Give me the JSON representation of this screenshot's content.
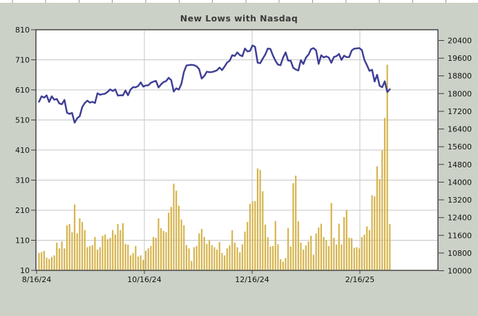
{
  "window": {
    "background_color": "#ccd1c7",
    "plot_background_color": "#ffffff",
    "frame_color": "#3a3a3a",
    "gridline_color": "#c5c5c5",
    "text_color": "#111111",
    "title_color": "#3b3b3b"
  },
  "chart_data": {
    "type": "bar",
    "title": "New Lows with Nasdaq",
    "legend_position": "none",
    "grid": "on",
    "left_axis": {
      "label": "",
      "min": 10,
      "max": 810,
      "ticks": [
        810,
        710,
        610,
        510,
        410,
        310,
        210,
        110,
        10
      ]
    },
    "right_axis": {
      "label": "",
      "min": 10000,
      "max": 20400,
      "ticks": [
        20400,
        19600,
        18800,
        18000,
        17200,
        16400,
        15600,
        14800,
        14000,
        13200,
        12400,
        11600,
        10800,
        10000
      ]
    },
    "x_tick_labels": [
      "8/16/24",
      "10/16/24",
      "12/16/24",
      "2/16/25"
    ],
    "dates": [
      "8/16/24",
      "8/19/24",
      "8/20/24",
      "8/21/24",
      "8/22/24",
      "8/23/24",
      "8/26/24",
      "8/27/24",
      "8/28/24",
      "8/29/24",
      "8/30/24",
      "9/3/24",
      "9/4/24",
      "9/5/24",
      "9/6/24",
      "9/9/24",
      "9/10/24",
      "9/11/24",
      "9/12/24",
      "9/13/24",
      "9/16/24",
      "9/17/24",
      "9/18/24",
      "9/19/24",
      "9/20/24",
      "9/23/24",
      "9/24/24",
      "9/25/24",
      "9/26/24",
      "9/27/24",
      "9/30/24",
      "10/1/24",
      "10/2/24",
      "10/3/24",
      "10/4/24",
      "10/7/24",
      "10/8/24",
      "10/9/24",
      "10/10/24",
      "10/11/24",
      "10/14/24",
      "10/15/24",
      "10/16/24",
      "10/17/24",
      "10/18/24",
      "10/21/24",
      "10/22/24",
      "10/23/24",
      "10/24/24",
      "10/25/24",
      "10/28/24",
      "10/29/24",
      "10/30/24",
      "10/31/24",
      "11/1/24",
      "11/4/24",
      "11/5/24",
      "11/6/24",
      "11/7/24",
      "11/8/24",
      "11/11/24",
      "11/12/24",
      "11/13/24",
      "11/14/24",
      "11/15/24",
      "11/18/24",
      "11/19/24",
      "11/20/24",
      "11/21/24",
      "11/22/24",
      "11/25/24",
      "11/26/24",
      "11/27/24",
      "11/29/24",
      "12/2/24",
      "12/3/24",
      "12/4/24",
      "12/5/24",
      "12/6/24",
      "12/9/24",
      "12/10/24",
      "12/11/24",
      "12/12/24",
      "12/13/24",
      "12/16/24",
      "12/17/24",
      "12/18/24",
      "12/19/24",
      "12/20/24",
      "12/23/24",
      "12/24/24",
      "12/26/24",
      "12/27/24",
      "12/30/24",
      "12/31/24",
      "1/2/25",
      "1/3/25",
      "1/6/25",
      "1/7/25",
      "1/8/25",
      "1/10/25",
      "1/13/25",
      "1/14/25",
      "1/15/25",
      "1/16/25",
      "1/17/25",
      "1/21/25",
      "1/22/25",
      "1/23/25",
      "1/24/25",
      "1/27/25",
      "1/28/25",
      "1/29/25",
      "1/30/25",
      "1/31/25",
      "2/3/25",
      "2/4/25",
      "2/5/25",
      "2/6/25",
      "2/7/25",
      "2/10/25",
      "2/11/25",
      "2/12/25",
      "2/13/25",
      "2/14/25",
      "2/18/25",
      "2/19/25",
      "2/20/25",
      "2/21/25",
      "2/24/25",
      "2/25/25",
      "2/26/25",
      "2/27/25",
      "2/28/25",
      "3/3/25",
      "3/4/25",
      "3/5/25",
      "3/6/25",
      "3/7/25"
    ],
    "series": [
      {
        "name": "New Lows",
        "type": "bar",
        "axis": "left",
        "color": "#d6b44d",
        "values": [
          68,
          71,
          75,
          52,
          48,
          55,
          60,
          102,
          83,
          106,
          83,
          160,
          164,
          137,
          229,
          133,
          183,
          171,
          144,
          87,
          91,
          94,
          121,
          79,
          87,
          125,
          129,
          114,
          118,
          144,
          129,
          164,
          144,
          167,
          98,
          95,
          60,
          68,
          91,
          56,
          60,
          45,
          75,
          83,
          91,
          121,
          118,
          183,
          150,
          141,
          137,
          202,
          221,
          298,
          275,
          225,
          179,
          160,
          94,
          83,
          41,
          87,
          91,
          133,
          148,
          121,
          98,
          110,
          94,
          87,
          79,
          104,
          68,
          60,
          83,
          93,
          143,
          102,
          87,
          70,
          97,
          139,
          171,
          231,
          239,
          240,
          349,
          344,
          273,
          162,
          120,
          89,
          91,
          174,
          97,
          47,
          39,
          51,
          151,
          89,
          300,
          325,
          173,
          102,
          79,
          93,
          106,
          125,
          62,
          133,
          152,
          165,
          121,
          110,
          91,
          234,
          118,
          96,
          165,
          96,
          187,
          211,
          119,
          117,
          85,
          87,
          83,
          121,
          129,
          156,
          144,
          260,
          256,
          356,
          313,
          409,
          517,
          694,
          164
        ]
      },
      {
        "name": "Nasdaq",
        "type": "line",
        "axis": "right",
        "color": "#3f3f96",
        "values": [
          17632,
          17876,
          17817,
          17919,
          17619,
          17877,
          17725,
          17754,
          17556,
          17516,
          17714,
          17136,
          17084,
          17127,
          16691,
          16884,
          16979,
          17396,
          17569,
          17684,
          17592,
          17628,
          17573,
          18014,
          17948,
          17974,
          17994,
          18083,
          18190,
          18120,
          18189,
          17910,
          17925,
          17918,
          18138,
          17924,
          18183,
          18292,
          18282,
          18343,
          18503,
          18316,
          18368,
          18373,
          18490,
          18540,
          18573,
          18276,
          18415,
          18519,
          18568,
          18713,
          18608,
          18095,
          18240,
          18180,
          18439,
          18983,
          19269,
          19287,
          19299,
          19281,
          19230,
          19108,
          18680,
          18791,
          18988,
          18966,
          18972,
          19003,
          19055,
          19175,
          19060,
          19218,
          19404,
          19481,
          19735,
          19700,
          19860,
          19737,
          19687,
          20034,
          19902,
          19927,
          20174,
          20109,
          19393,
          19372,
          19573,
          19764,
          20031,
          20020,
          19722,
          19487,
          19311,
          19281,
          19622,
          19864,
          19490,
          19489,
          19162,
          19088,
          19044,
          19511,
          19338,
          19630,
          19757,
          20009,
          20053,
          19954,
          19341,
          19733,
          19632,
          19681,
          19627,
          19391,
          19654,
          19692,
          19791,
          19523,
          19714,
          19643,
          19650,
          19945,
          20027,
          20041,
          20056,
          19962,
          19524,
          19286,
          19026,
          19075,
          18544,
          18847,
          18350,
          18285,
          18553,
          18069,
          18196
        ]
      }
    ]
  }
}
